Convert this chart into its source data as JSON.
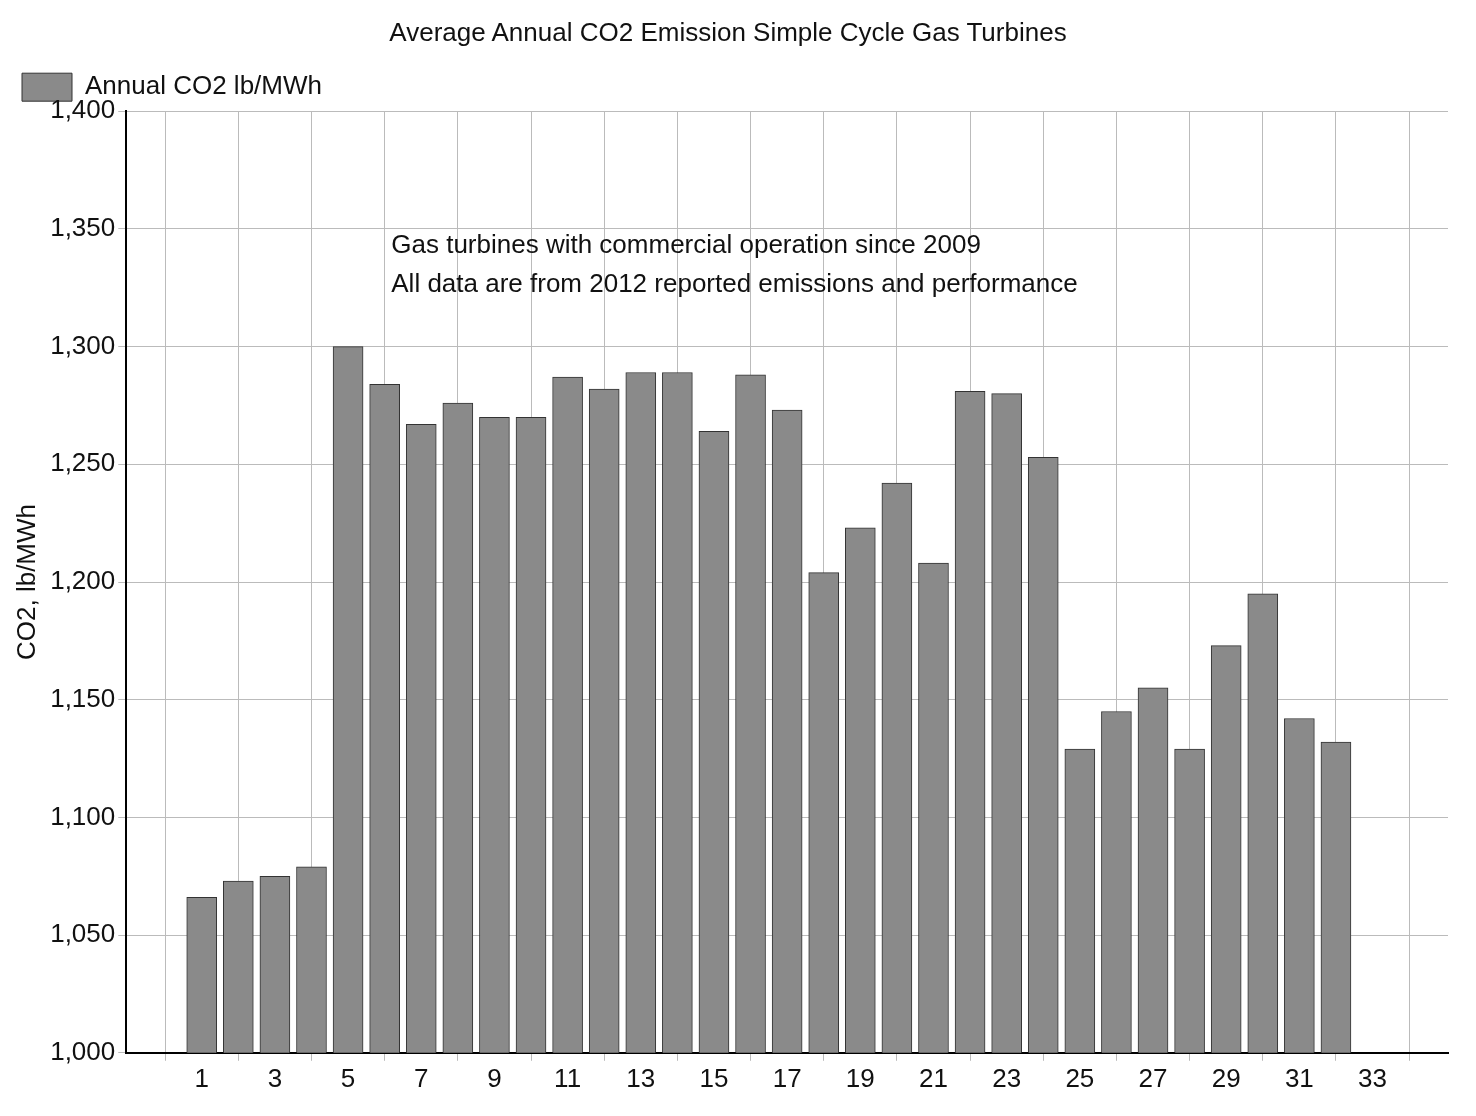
{
  "chart_data": {
    "type": "bar",
    "title": "Average Annual CO2 Emission Simple Cycle Gas Turbines",
    "ylabel": "CO2, lb/MWh",
    "annotations": [
      "Gas turbines with commercial operation since 2009",
      "All data are from 2012 reported emissions and performance"
    ],
    "x": [
      1,
      2,
      3,
      4,
      5,
      6,
      7,
      8,
      9,
      10,
      11,
      12,
      13,
      14,
      15,
      16,
      17,
      18,
      19,
      20,
      21,
      22,
      23,
      24,
      25,
      26,
      27,
      28,
      29,
      30,
      31,
      32
    ],
    "series": [
      {
        "name": "Annual CO2 lb/MWh",
        "color": "#8a8a8a",
        "values": [
          1066,
          1073,
          1075,
          1079,
          1300,
          1284,
          1267,
          1276,
          1270,
          1270,
          1287,
          1282,
          1289,
          1289,
          1264,
          1288,
          1273,
          1204,
          1223,
          1242,
          1208,
          1281,
          1280,
          1253,
          1129,
          1145,
          1155,
          1129,
          1173,
          1195,
          1142,
          1132
        ]
      }
    ],
    "xlim": [
      0,
      34
    ],
    "xticks": [
      1,
      3,
      5,
      7,
      9,
      11,
      13,
      15,
      17,
      19,
      21,
      23,
      25,
      27,
      29,
      31,
      33
    ],
    "ylim": [
      1000,
      1400
    ],
    "yticks": [
      {
        "value": 1000,
        "label": "1,000"
      },
      {
        "value": 1050,
        "label": "1,050"
      },
      {
        "value": 1100,
        "label": "1,100"
      },
      {
        "value": 1150,
        "label": "1,150"
      },
      {
        "value": 1200,
        "label": "1,200"
      },
      {
        "value": 1250,
        "label": "1,250"
      },
      {
        "value": 1300,
        "label": "1,300"
      },
      {
        "value": 1350,
        "label": "1,350"
      },
      {
        "value": 1400,
        "label": "1,400"
      }
    ],
    "grid": true,
    "legend": "top left"
  }
}
